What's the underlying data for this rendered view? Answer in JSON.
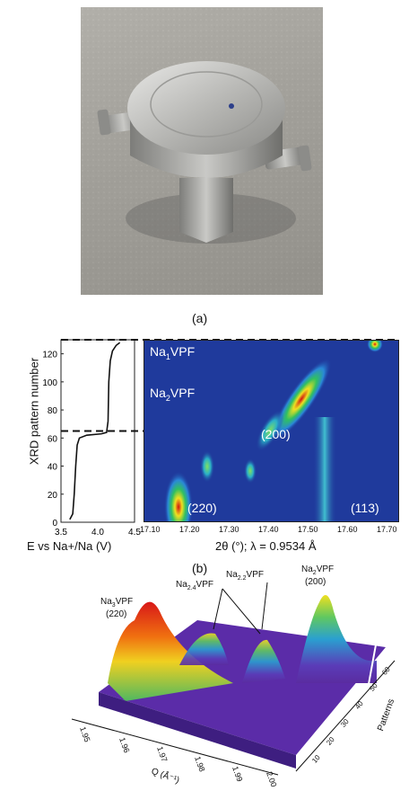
{
  "panel_a": {
    "caption": "(a)"
  },
  "panel_b": {
    "caption": "(b)",
    "left_plot": {
      "ylabel": "XRD pattern number",
      "xlabel": "E vs Na+/Na (V)",
      "xticks": [
        "3.5",
        "4.0",
        "4.5"
      ],
      "yticks": [
        "0",
        "20",
        "40",
        "60",
        "80",
        "100",
        "120"
      ]
    },
    "right_plot": {
      "xlabel": "2θ (°); λ = 0.9534 Å",
      "xticks": [
        "17.10",
        "17.20",
        "17.30",
        "17.40",
        "17.50",
        "17.60",
        "17.70"
      ],
      "label_top": "Na",
      "label_top_sub": "1",
      "label_top_rest": "VPF",
      "label_mid": "Na",
      "label_mid_sub": "2",
      "label_mid_rest": "VPF",
      "peak_200": "(200)",
      "peak_220": "(220)",
      "peak_113": "(113)"
    },
    "chart_data": {
      "type": "line",
      "x_label": "E vs Na+/Na (V)",
      "y_label": "XRD pattern number",
      "xlim": [
        3.5,
        4.5
      ],
      "ylim": [
        0,
        130
      ],
      "x": [
        3.62,
        3.66,
        3.68,
        3.7,
        3.72,
        3.75,
        3.85,
        4.05,
        4.12,
        4.14,
        4.15,
        4.17,
        4.2,
        4.25,
        4.3
      ],
      "y": [
        2,
        6,
        20,
        40,
        55,
        60,
        62,
        63,
        64,
        72,
        100,
        115,
        122,
        126,
        128
      ],
      "dashed_lines_at": [
        65,
        130
      ]
    }
  },
  "panel_c": {
    "caption": "",
    "labels": {
      "na3": "Na",
      "na3_sub": "3",
      "na3_rest": "VPF",
      "na3_peak": "(220)",
      "na24": "Na",
      "na24_sub": "2.4",
      "na24_rest": "VPF",
      "na22": "Na",
      "na22_sub": "2.2",
      "na22_rest": "VPF",
      "na2": "Na",
      "na2_sub": "2",
      "na2_rest": "VPF",
      "na2_peak": "(200)"
    },
    "axis_q_label": "Q (Å⁻¹)",
    "axis_q_ticks": [
      "1.95",
      "1.96",
      "1.97",
      "1.98",
      "1.99",
      "2.00"
    ],
    "axis_patterns_label": "Patterns",
    "axis_patterns_ticks": [
      "10",
      "20",
      "30",
      "40",
      "50",
      "60"
    ]
  }
}
